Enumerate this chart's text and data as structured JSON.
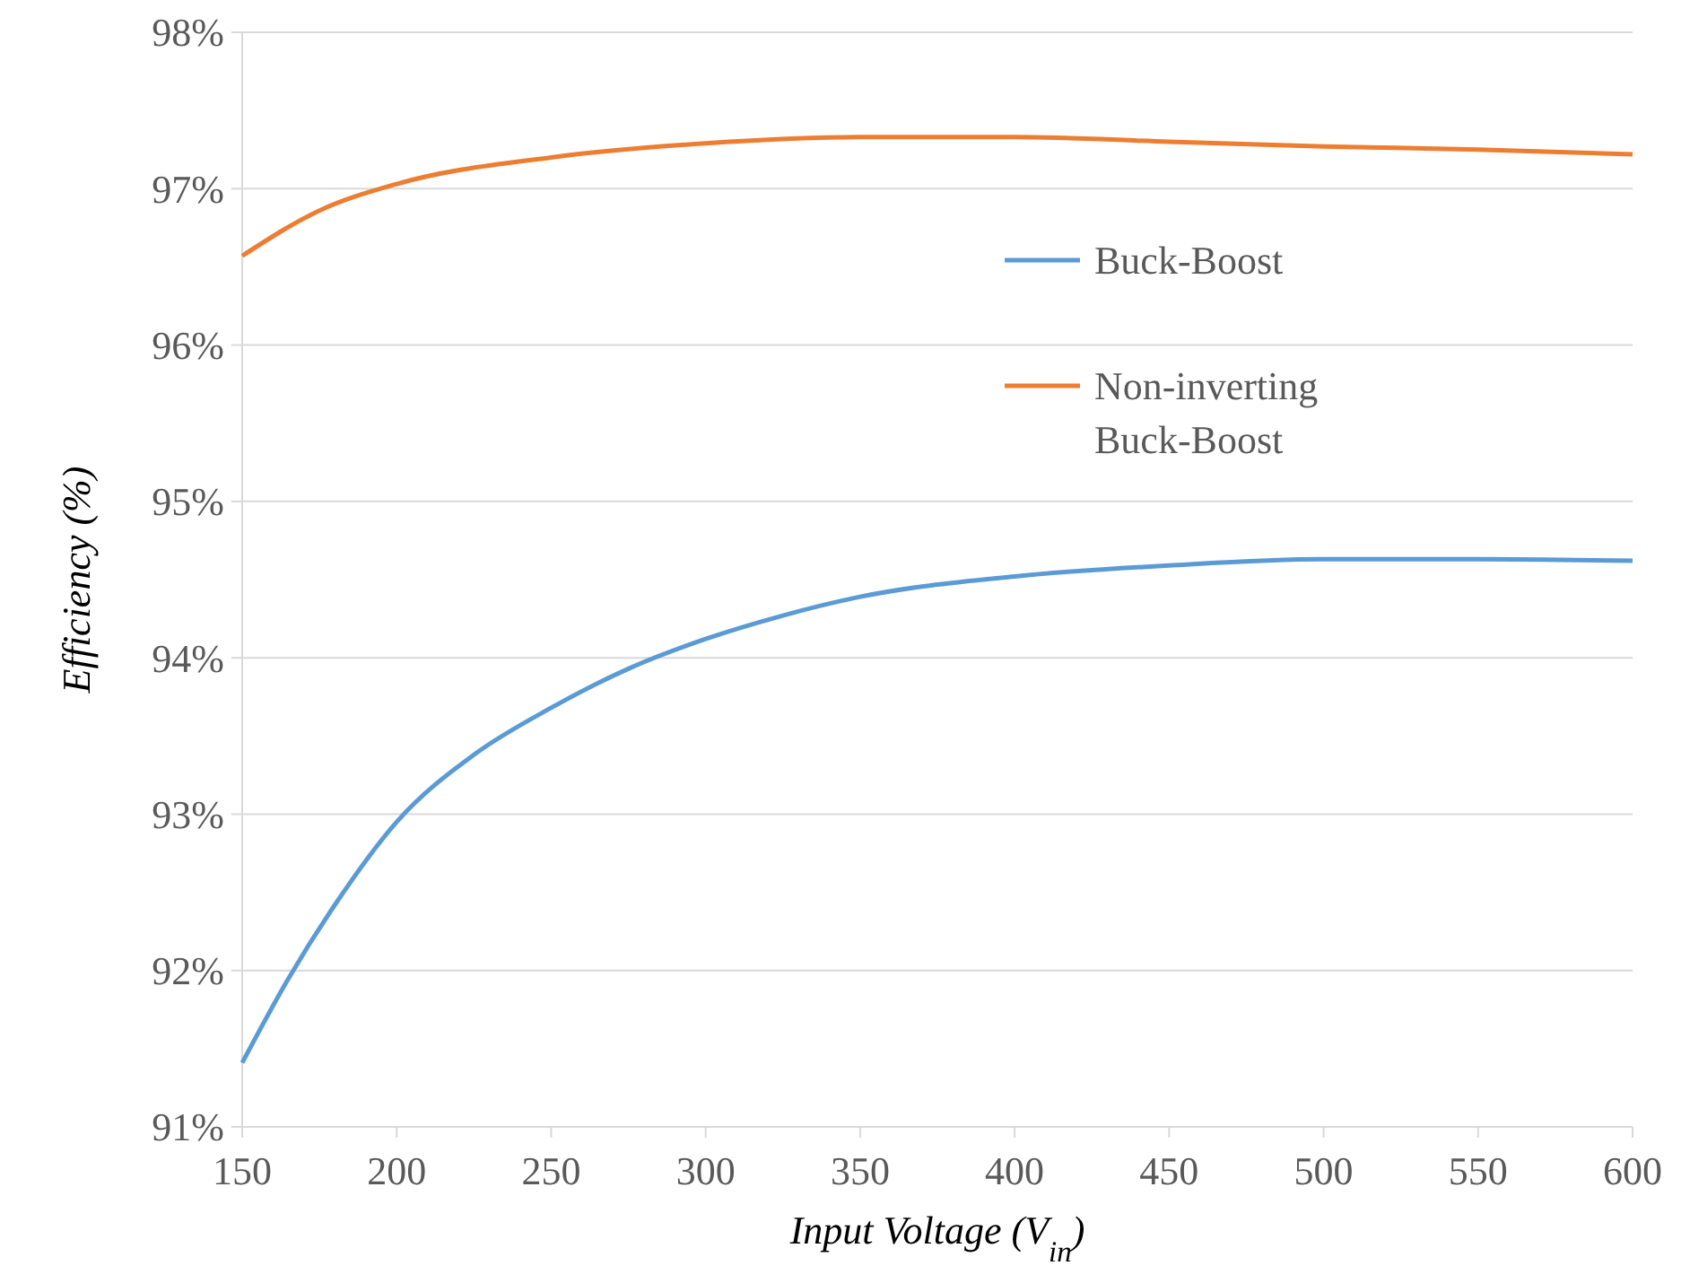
{
  "chart_data": {
    "type": "line",
    "xlabel": "Input Voltage (V$_{in}$)",
    "ylabel": "Efficiency (%)",
    "xlim": [
      150,
      600
    ],
    "xticks": [
      150,
      200,
      250,
      300,
      350,
      400,
      450,
      500,
      550,
      600
    ],
    "ylim": [
      91,
      98
    ],
    "yticks": [
      {
        "value": 91,
        "label": "91%"
      },
      {
        "value": 92,
        "label": "92%"
      },
      {
        "value": 93,
        "label": "93%"
      },
      {
        "value": 94,
        "label": "94%"
      },
      {
        "value": 95,
        "label": "95%"
      },
      {
        "value": 96,
        "label": "96%"
      },
      {
        "value": 97,
        "label": "97%"
      },
      {
        "value": 98,
        "label": "98%"
      }
    ],
    "grid": "y",
    "legend": "right",
    "marker": "none",
    "line_style": "solid",
    "series": [
      {
        "name": "Buck-Boost",
        "color": "#5b9bd5",
        "x": [
          150,
          165,
          180,
          200,
          225,
          250,
          275,
          300,
          325,
          350,
          400,
          450,
          500,
          550,
          600
        ],
        "values": [
          91.41,
          91.95,
          92.42,
          92.95,
          93.38,
          93.68,
          93.93,
          94.12,
          94.27,
          94.39,
          94.52,
          94.59,
          94.63,
          94.63,
          94.62
        ]
      },
      {
        "name": "Non-inverting Buck-Boost",
        "color": "#ed7d31",
        "x": [
          150,
          175,
          200,
          250,
          300,
          350,
          400,
          450,
          500,
          550,
          600
        ],
        "values": [
          96.57,
          96.86,
          97.03,
          97.2,
          97.29,
          97.33,
          97.33,
          97.3,
          97.27,
          97.25,
          97.22
        ]
      }
    ]
  }
}
